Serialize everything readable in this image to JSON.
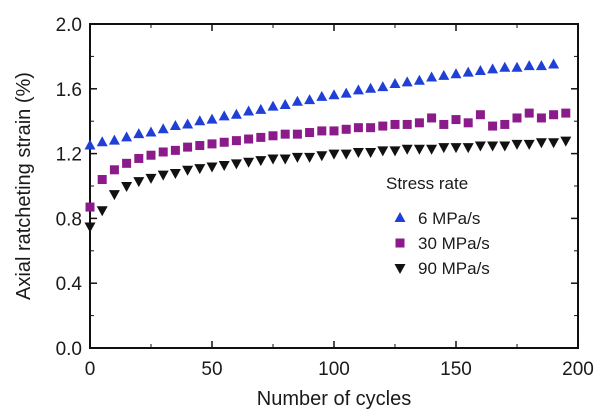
{
  "chart_data": {
    "type": "scatter",
    "title": "",
    "xlabel": "Number of cycles",
    "ylabel": "Axial ratcheting strain (%)",
    "xlim": [
      0,
      200
    ],
    "ylim": [
      0.0,
      2.0
    ],
    "x_ticks": [
      0,
      50,
      100,
      150,
      200
    ],
    "x_tick_labels": [
      "0",
      "50",
      "100",
      "150",
      "200"
    ],
    "y_ticks": [
      0.0,
      0.4,
      0.8,
      1.2,
      1.6,
      2.0
    ],
    "y_tick_labels": [
      "0.0",
      "0.4",
      "0.8",
      "1.2",
      "1.6",
      "2.0"
    ],
    "grid": false,
    "legend": {
      "title": "Stress rate",
      "placement": "center-right"
    },
    "series": [
      {
        "name": "6 MPa/s",
        "marker": "triangle-up",
        "color": "#1f3fd6",
        "x": [
          0,
          5,
          10,
          15,
          20,
          25,
          30,
          35,
          40,
          45,
          50,
          55,
          60,
          65,
          70,
          75,
          80,
          85,
          90,
          95,
          100,
          105,
          110,
          115,
          120,
          125,
          130,
          135,
          140,
          145,
          150,
          155,
          160,
          165,
          170,
          175,
          180,
          185,
          190
        ],
        "y": [
          1.25,
          1.27,
          1.28,
          1.3,
          1.32,
          1.33,
          1.35,
          1.37,
          1.38,
          1.4,
          1.41,
          1.43,
          1.44,
          1.46,
          1.47,
          1.49,
          1.5,
          1.52,
          1.53,
          1.55,
          1.56,
          1.57,
          1.59,
          1.6,
          1.61,
          1.63,
          1.64,
          1.65,
          1.67,
          1.68,
          1.69,
          1.7,
          1.71,
          1.72,
          1.73,
          1.73,
          1.74,
          1.74,
          1.75
        ]
      },
      {
        "name": "30 MPa/s",
        "marker": "square",
        "color": "#8b1a8b",
        "x": [
          0,
          5,
          10,
          15,
          20,
          25,
          30,
          35,
          40,
          45,
          50,
          55,
          60,
          65,
          70,
          75,
          80,
          85,
          90,
          95,
          100,
          105,
          110,
          115,
          120,
          125,
          130,
          135,
          140,
          145,
          150,
          155,
          160,
          165,
          170,
          175,
          180,
          185,
          190,
          195
        ],
        "y": [
          0.87,
          1.04,
          1.1,
          1.14,
          1.17,
          1.19,
          1.21,
          1.22,
          1.24,
          1.25,
          1.26,
          1.27,
          1.28,
          1.29,
          1.3,
          1.31,
          1.32,
          1.32,
          1.33,
          1.34,
          1.34,
          1.35,
          1.36,
          1.36,
          1.37,
          1.38,
          1.38,
          1.39,
          1.42,
          1.38,
          1.41,
          1.39,
          1.44,
          1.37,
          1.38,
          1.42,
          1.45,
          1.42,
          1.44,
          1.45
        ]
      },
      {
        "name": "90 MPa/s",
        "marker": "triangle-down",
        "color": "#111111",
        "x": [
          0,
          5,
          10,
          15,
          20,
          25,
          30,
          35,
          40,
          45,
          50,
          55,
          60,
          65,
          70,
          75,
          80,
          85,
          90,
          95,
          100,
          105,
          110,
          115,
          120,
          125,
          130,
          135,
          140,
          145,
          150,
          155,
          160,
          165,
          170,
          175,
          180,
          185,
          190,
          195
        ],
        "y": [
          0.75,
          0.85,
          0.95,
          1.0,
          1.03,
          1.05,
          1.07,
          1.08,
          1.1,
          1.11,
          1.12,
          1.13,
          1.14,
          1.15,
          1.16,
          1.17,
          1.17,
          1.18,
          1.18,
          1.19,
          1.2,
          1.2,
          1.21,
          1.21,
          1.22,
          1.22,
          1.23,
          1.23,
          1.23,
          1.24,
          1.24,
          1.24,
          1.25,
          1.25,
          1.25,
          1.26,
          1.26,
          1.27,
          1.27,
          1.28
        ]
      }
    ]
  }
}
